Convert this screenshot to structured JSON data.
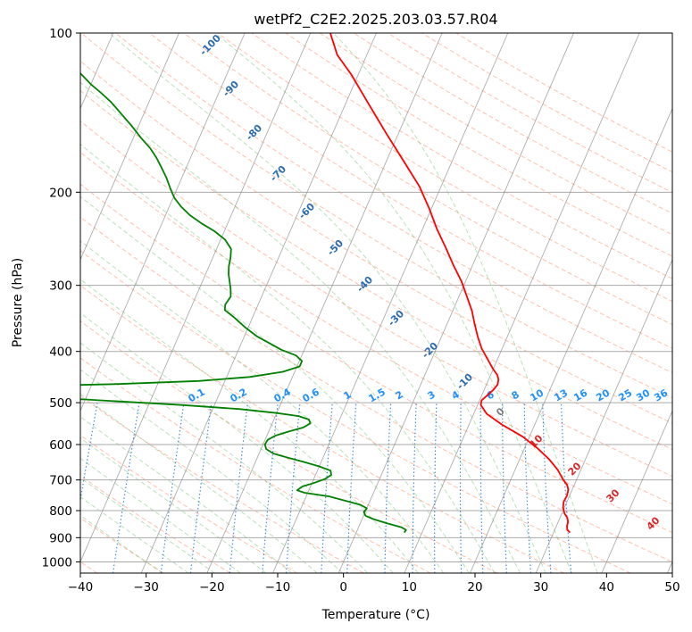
{
  "chart_data": {
    "type": "line",
    "title": "wetPf2_C2E2.2025.203.03.57.R04",
    "xlabel": "Temperature (°C)",
    "ylabel": "Pressure (hPa)",
    "xlim": [
      -40,
      50
    ],
    "ylim": [
      1050,
      100
    ],
    "y_scale": "log",
    "grid": true,
    "x_ticks": [
      -40,
      -30,
      -20,
      -10,
      0,
      10,
      20,
      30,
      40,
      50
    ],
    "y_ticks": [
      100,
      200,
      300,
      400,
      500,
      600,
      700,
      800,
      900,
      1000
    ],
    "skew_x": true,
    "series": [
      {
        "name": "",
        "color": "#ff0000",
        "points": [
          [
            32.5,
            880
          ],
          [
            31.9,
            870
          ],
          [
            31.6,
            855
          ],
          [
            31.5,
            840
          ],
          [
            31.1,
            825
          ],
          [
            30.4,
            810
          ],
          [
            29.8,
            790
          ],
          [
            29.5,
            770
          ],
          [
            29.6,
            750
          ],
          [
            29.4,
            730
          ],
          [
            28.9,
            715
          ],
          [
            28.0,
            700
          ],
          [
            26.5,
            670
          ],
          [
            24.5,
            640
          ],
          [
            22.0,
            610
          ],
          [
            19.0,
            580
          ],
          [
            15.0,
            550
          ],
          [
            12.0,
            525
          ],
          [
            10.5,
            505
          ],
          [
            10.3,
            495
          ],
          [
            10.8,
            485
          ],
          [
            11.4,
            473
          ],
          [
            11.7,
            462
          ],
          [
            11.5,
            452
          ],
          [
            11.0,
            443
          ],
          [
            10.0,
            432
          ],
          [
            8.6,
            415
          ],
          [
            6.9,
            395
          ],
          [
            5.5,
            375
          ],
          [
            4.2,
            355
          ],
          [
            2.9,
            335
          ],
          [
            1.2,
            315
          ],
          [
            -0.6,
            295
          ],
          [
            -2.9,
            275
          ],
          [
            -5.2,
            255
          ],
          [
            -7.8,
            235
          ],
          [
            -10.3,
            215
          ],
          [
            -13.3,
            195
          ],
          [
            -17.3,
            175
          ],
          [
            -21.8,
            155
          ],
          [
            -26.8,
            135
          ],
          [
            -31.0,
            120
          ],
          [
            -34.5,
            110
          ],
          [
            -37.0,
            100
          ]
        ]
      },
      {
        "name": "",
        "color": "#008000",
        "points": [
          [
            7.3,
            880
          ],
          [
            7.4,
            870
          ],
          [
            6.5,
            860
          ],
          [
            4.0,
            845
          ],
          [
            1.7,
            830
          ],
          [
            0.3,
            818
          ],
          [
            -0.2,
            805
          ],
          [
            0.0,
            792
          ],
          [
            -1.2,
            780
          ],
          [
            -3.8,
            766
          ],
          [
            -6.5,
            752
          ],
          [
            -10.5,
            740
          ],
          [
            -11.8,
            732
          ],
          [
            -11.2,
            720
          ],
          [
            -9.8,
            710
          ],
          [
            -8.3,
            697
          ],
          [
            -7.6,
            685
          ],
          [
            -8.0,
            672
          ],
          [
            -10.0,
            660
          ],
          [
            -12.5,
            648
          ],
          [
            -15.2,
            636
          ],
          [
            -17.8,
            624
          ],
          [
            -19.2,
            612
          ],
          [
            -19.7,
            600
          ],
          [
            -19.6,
            588
          ],
          [
            -18.7,
            577
          ],
          [
            -17.0,
            567
          ],
          [
            -15.0,
            557
          ],
          [
            -14.2,
            547
          ],
          [
            -14.7,
            538
          ],
          [
            -16.5,
            530
          ],
          [
            -20.0,
            523
          ],
          [
            -26.0,
            514
          ],
          [
            -35.0,
            505
          ],
          [
            -50.0,
            493
          ],
          [
            -65.0,
            485
          ],
          [
            -75.0,
            478
          ],
          [
            -78.0,
            474
          ],
          [
            -76.5,
            470
          ],
          [
            -62.0,
            466
          ],
          [
            -46.0,
            461
          ],
          [
            -34.0,
            455
          ],
          [
            -26.5,
            447
          ],
          [
            -21.8,
            437
          ],
          [
            -19.6,
            427
          ],
          [
            -19.6,
            417
          ],
          [
            -20.9,
            407
          ],
          [
            -23.5,
            397
          ],
          [
            -25.5,
            387
          ],
          [
            -28.0,
            375
          ],
          [
            -30.5,
            360
          ],
          [
            -32.8,
            345
          ],
          [
            -34.7,
            334
          ],
          [
            -35.0,
            326
          ],
          [
            -34.7,
            315
          ],
          [
            -35.2,
            305
          ],
          [
            -35.8,
            296
          ],
          [
            -36.5,
            286
          ],
          [
            -37.0,
            276
          ],
          [
            -37.3,
            266
          ],
          [
            -37.8,
            256
          ],
          [
            -39.3,
            246
          ],
          [
            -41.5,
            237
          ],
          [
            -44.0,
            229
          ],
          [
            -46.3,
            221
          ],
          [
            -48.2,
            213
          ],
          [
            -49.8,
            205
          ],
          [
            -51.0,
            197
          ],
          [
            -52.3,
            188
          ],
          [
            -53.7,
            180
          ],
          [
            -55.2,
            172
          ],
          [
            -56.8,
            165
          ],
          [
            -58.8,
            158
          ],
          [
            -61.0,
            150
          ],
          [
            -63.5,
            142
          ],
          [
            -65.8,
            135
          ],
          [
            -67.8,
            130
          ],
          [
            -70.0,
            125
          ],
          [
            -72.0,
            120
          ],
          [
            -73.8,
            116
          ],
          [
            -75.8,
            113
          ],
          [
            -78.3,
            110
          ],
          [
            -81.0,
            105
          ],
          [
            -83.0,
            100
          ]
        ]
      }
    ],
    "mixing_ratio_labels": [
      "0.1",
      "0.2",
      "0.4",
      "0.6",
      "1",
      "1.5",
      "2",
      "3",
      "4",
      "6",
      "8",
      "10",
      "13",
      "16",
      "20",
      "25",
      "30",
      "36"
    ],
    "dry_adiabat_labels": [
      "-100",
      "-90",
      "-80",
      "-70",
      "-60",
      "-50",
      "-40",
      "-30",
      "-20",
      "-10"
    ],
    "moist_adiabat_labels": [
      "0",
      "10",
      "20",
      "30",
      "40"
    ],
    "colors": {
      "temperature": "#ff0000",
      "dewpoint": "#008000",
      "dry_adiabat": "#ff8c69",
      "moist_adiabat": "#66bb66",
      "mixing_ratio": "#1e78d8",
      "isotherm": "#7f7f7f",
      "isobar": "#aaaaaa"
    }
  }
}
